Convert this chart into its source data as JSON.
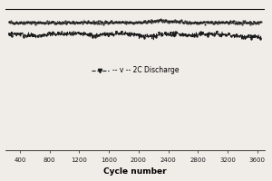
{
  "title": "",
  "xlabel": "Cycle number",
  "ylabel": "",
  "xlim": [
    200,
    3700
  ],
  "ylim": [
    0.0,
    1.0
  ],
  "xticks": [
    400,
    800,
    1200,
    1600,
    2000,
    2400,
    2800,
    3200,
    3600
  ],
  "background_color": "#f0ede8",
  "legend_label": "-- v -- 2C Discharge",
  "upper_line_base": 0.88,
  "lower_line_base": 0.8,
  "noise_amplitude_upper": 0.005,
  "noise_amplitude_lower": 0.008,
  "line_color": "#1a1a1a",
  "seed": 42,
  "n_points": 700
}
